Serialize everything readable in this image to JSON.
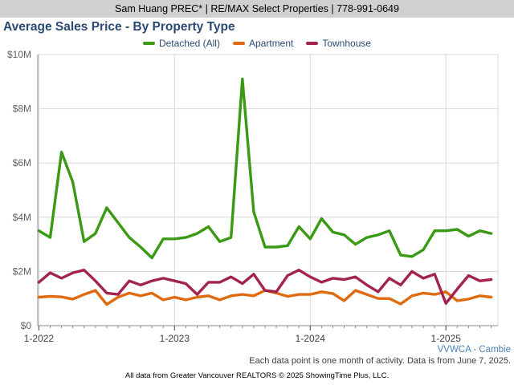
{
  "header": {
    "agent_info": "Sam Huang PREC* | RE/MAX Select Properties | 778-991-0649"
  },
  "footer": {
    "note": "Each data point is one month of activity. Data is from June 7, 2025.",
    "credit": "All data from Greater Vancouver REALTORS © 2025 ShowingTime Plus, LLC."
  },
  "chart_data": {
    "type": "line",
    "title": "Average Sales Price - By Property Type",
    "region_label": "VVWCA - Cambie",
    "x": [
      "1-2022",
      "2-2022",
      "3-2022",
      "4-2022",
      "5-2022",
      "6-2022",
      "7-2022",
      "8-2022",
      "9-2022",
      "10-2022",
      "11-2022",
      "12-2022",
      "1-2023",
      "2-2023",
      "3-2023",
      "4-2023",
      "5-2023",
      "6-2023",
      "7-2023",
      "8-2023",
      "9-2023",
      "10-2023",
      "11-2023",
      "12-2023",
      "1-2024",
      "2-2024",
      "3-2024",
      "4-2024",
      "5-2024",
      "6-2024",
      "7-2024",
      "8-2024",
      "9-2024",
      "10-2024",
      "11-2024",
      "12-2024",
      "1-2025",
      "2-2025",
      "3-2025",
      "4-2025",
      "5-2025"
    ],
    "x_tick_labels": [
      "1-2022",
      "1-2023",
      "1-2024",
      "1-2025"
    ],
    "y_tick_labels": [
      "$0",
      "$2M",
      "$4M",
      "$6M",
      "$8M",
      "$10M"
    ],
    "ylim": [
      0,
      10000000
    ],
    "grid": true,
    "legend_position": "top-center",
    "series": [
      {
        "name": "Detached (All)",
        "color": "#3a9a14",
        "values": [
          3500000,
          3250000,
          6400000,
          5300000,
          3100000,
          3400000,
          4350000,
          3800000,
          3250000,
          2900000,
          2500000,
          3200000,
          3200000,
          3250000,
          3400000,
          3650000,
          3100000,
          3250000,
          9100000,
          4200000,
          2900000,
          2900000,
          2950000,
          3650000,
          3200000,
          3950000,
          3450000,
          3350000,
          3000000,
          3250000,
          3350000,
          3500000,
          2600000,
          2550000,
          2800000,
          3500000,
          3500000,
          3550000,
          3300000,
          3500000,
          3400000
        ]
      },
      {
        "name": "Apartment",
        "color": "#e06a10",
        "values": [
          1050000,
          1080000,
          1060000,
          980000,
          1150000,
          1300000,
          780000,
          1050000,
          1200000,
          1100000,
          1200000,
          950000,
          1050000,
          950000,
          1050000,
          1100000,
          950000,
          1100000,
          1150000,
          1100000,
          1300000,
          1200000,
          1080000,
          1150000,
          1150000,
          1250000,
          1180000,
          920000,
          1300000,
          1150000,
          1000000,
          1000000,
          800000,
          1100000,
          1200000,
          1150000,
          1250000,
          920000,
          980000,
          1100000,
          1050000
        ]
      },
      {
        "name": "Townhouse",
        "color": "#a3234f",
        "values": [
          1600000,
          1950000,
          1750000,
          1950000,
          2050000,
          1650000,
          1200000,
          1150000,
          1650000,
          1500000,
          1650000,
          1750000,
          1650000,
          1550000,
          1150000,
          1600000,
          1600000,
          1800000,
          1550000,
          1900000,
          1300000,
          1250000,
          1850000,
          2050000,
          1800000,
          1600000,
          1750000,
          1700000,
          1800000,
          1500000,
          1250000,
          1750000,
          1500000,
          2000000,
          1750000,
          1900000,
          820000,
          1350000,
          1850000,
          1650000,
          1700000
        ]
      }
    ]
  }
}
